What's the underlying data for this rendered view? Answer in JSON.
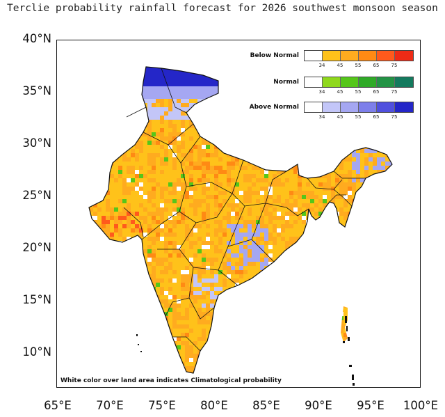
{
  "title": "Terclie probability rainfall forecast for 2026 southwest monsoon  season",
  "y_axis": {
    "labels": [
      "40°N",
      "35°N",
      "30°N",
      "25°N",
      "20°N",
      "15°N",
      "10°N"
    ]
  },
  "x_axis": {
    "labels": [
      "65°E",
      "70°E",
      "75°E",
      "80°E",
      "85°E",
      "90°E",
      "95°E",
      "100°E"
    ]
  },
  "legend": {
    "categories": [
      {
        "name": "Below Normal",
        "colors": [
          "#ffffff",
          "#ffc21a",
          "#ffab1f",
          "#ff8a14",
          "#ff5a1c",
          "#ee2b16"
        ]
      },
      {
        "name": "Normal",
        "colors": [
          "#ffffff",
          "#8fd81c",
          "#55c61a",
          "#2faa27",
          "#239345",
          "#147a5e"
        ]
      },
      {
        "name": "Above Normal",
        "colors": [
          "#ffffff",
          "#c3c6f8",
          "#a5a7f2",
          "#7d7fea",
          "#5050de",
          "#2426c8"
        ]
      }
    ],
    "ticks": [
      "34",
      "45",
      "55",
      "65",
      "75"
    ]
  },
  "footnote": "White color over land area indicates Climatological probability"
}
